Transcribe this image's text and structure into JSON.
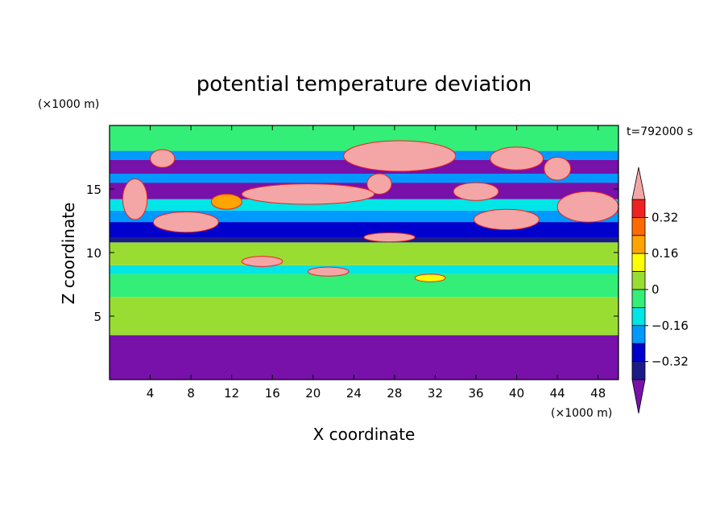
{
  "chart_data": {
    "type": "heatmap",
    "title": "potential temperature deviation",
    "xlabel": "X coordinate",
    "ylabel": "Z coordinate",
    "x_unit": "(×1000 m)",
    "y_unit": "(×1000 m)",
    "time_label": "t=792000 s",
    "xlim": [
      0,
      50
    ],
    "ylim": [
      0,
      20
    ],
    "x_ticks": [
      4,
      8,
      12,
      16,
      20,
      24,
      28,
      32,
      36,
      40,
      44,
      48
    ],
    "y_ticks": [
      5,
      10,
      15
    ],
    "colorbar": {
      "labels": [
        {
          "value": 0.32,
          "text": "0.32"
        },
        {
          "value": 0.16,
          "text": "0.16"
        },
        {
          "value": 0,
          "text": "0"
        },
        {
          "value": -0.16,
          "text": "−0.16"
        },
        {
          "value": -0.32,
          "text": "−0.32"
        }
      ],
      "levels": [
        {
          "min": 0.4,
          "max": null,
          "color": "#f4a6a6"
        },
        {
          "min": 0.32,
          "max": 0.4,
          "color": "#ee2222"
        },
        {
          "min": 0.24,
          "max": 0.32,
          "color": "#ff6a00"
        },
        {
          "min": 0.16,
          "max": 0.24,
          "color": "#ffa500"
        },
        {
          "min": 0.08,
          "max": 0.16,
          "color": "#ffff00"
        },
        {
          "min": 0.0,
          "max": 0.08,
          "color": "#99dd33"
        },
        {
          "min": -0.08,
          "max": 0.0,
          "color": "#33ee77"
        },
        {
          "min": -0.16,
          "max": -0.08,
          "color": "#00e5e5"
        },
        {
          "min": -0.24,
          "max": -0.16,
          "color": "#0099ff"
        },
        {
          "min": -0.32,
          "max": -0.24,
          "color": "#0000cc"
        },
        {
          "min": -0.4,
          "max": -0.32,
          "color": "#1a1a88"
        },
        {
          "min": null,
          "max": -0.4,
          "color": "#7711aa"
        }
      ]
    },
    "bands": [
      {
        "z0": 0,
        "z1": 3.5,
        "value": -0.5
      },
      {
        "z0": 3.5,
        "z1": 6.5,
        "value": 0.04
      },
      {
        "z0": 6.5,
        "z1": 8.3,
        "value": -0.04
      },
      {
        "z0": 8.3,
        "z1": 9.0,
        "value": -0.12
      },
      {
        "z0": 9.0,
        "z1": 10.8,
        "value": 0.04
      },
      {
        "z0": 10.8,
        "z1": 11.2,
        "value": -0.36
      },
      {
        "z0": 11.2,
        "z1": 12.4,
        "value": -0.28
      },
      {
        "z0": 12.4,
        "z1": 13.3,
        "value": -0.2
      },
      {
        "z0": 13.3,
        "z1": 14.2,
        "value": -0.12
      },
      {
        "z0": 14.2,
        "z1": 15.5,
        "value": -0.5
      },
      {
        "z0": 15.5,
        "z1": 16.2,
        "value": -0.2
      },
      {
        "z0": 16.2,
        "z1": 17.3,
        "value": -0.5
      },
      {
        "z0": 17.3,
        "z1": 18.0,
        "value": -0.2
      },
      {
        "z0": 18.0,
        "z1": 20.0,
        "value": -0.04
      }
    ],
    "blobs": [
      {
        "x": 28.5,
        "z": 17.6,
        "rx": 5.5,
        "rz": 1.2,
        "value": 0.5
      },
      {
        "x": 26.5,
        "z": 15.4,
        "rx": 1.2,
        "rz": 0.8,
        "value": 0.5
      },
      {
        "x": 40.0,
        "z": 17.4,
        "rx": 2.6,
        "rz": 0.9,
        "value": 0.5
      },
      {
        "x": 44.0,
        "z": 16.6,
        "rx": 1.3,
        "rz": 0.9,
        "value": 0.5
      },
      {
        "x": 5.2,
        "z": 17.4,
        "rx": 1.2,
        "rz": 0.7,
        "value": 0.5
      },
      {
        "x": 19.5,
        "z": 14.6,
        "rx": 6.5,
        "rz": 0.8,
        "value": 0.5
      },
      {
        "x": 7.5,
        "z": 12.4,
        "rx": 3.2,
        "rz": 0.8,
        "value": 0.5
      },
      {
        "x": 2.5,
        "z": 14.2,
        "rx": 1.2,
        "rz": 1.6,
        "value": 0.5
      },
      {
        "x": 47.0,
        "z": 13.6,
        "rx": 3.0,
        "rz": 1.2,
        "value": 0.5
      },
      {
        "x": 39.0,
        "z": 12.6,
        "rx": 3.2,
        "rz": 0.8,
        "value": 0.5
      },
      {
        "x": 36.0,
        "z": 14.8,
        "rx": 2.2,
        "rz": 0.7,
        "value": 0.5
      },
      {
        "x": 27.5,
        "z": 11.2,
        "rx": 2.5,
        "rz": 0.35,
        "value": 0.5
      },
      {
        "x": 15.0,
        "z": 9.3,
        "rx": 2.0,
        "rz": 0.4,
        "value": 0.5
      },
      {
        "x": 21.5,
        "z": 8.5,
        "rx": 2.0,
        "rz": 0.35,
        "value": 0.5
      },
      {
        "x": 11.5,
        "z": 14.0,
        "rx": 1.5,
        "rz": 0.6,
        "value": 0.2
      },
      {
        "x": 31.5,
        "z": 8.0,
        "rx": 1.5,
        "rz": 0.3,
        "value": 0.1
      }
    ]
  }
}
